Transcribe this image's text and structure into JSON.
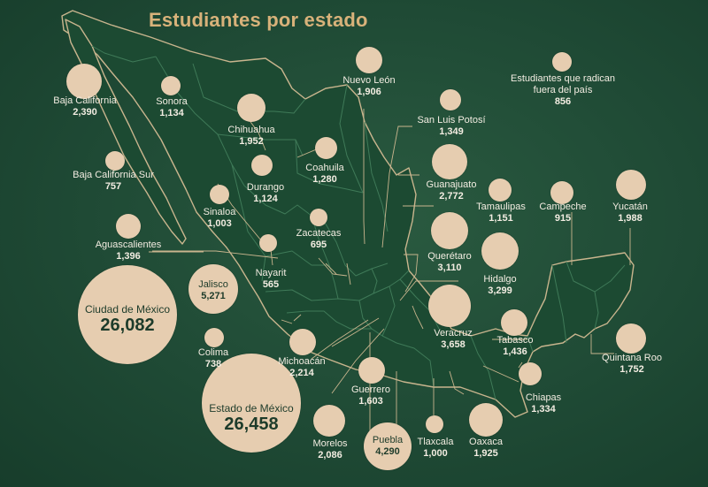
{
  "title": "Estudiantes por estado",
  "states": [
    {
      "key": "bc",
      "name": "Baja California",
      "value": "2,390"
    },
    {
      "key": "son",
      "name": "Sonora",
      "value": "1,134"
    },
    {
      "key": "chih",
      "name": "Chihuahua",
      "value": "1,952"
    },
    {
      "key": "nl",
      "name": "Nuevo León",
      "value": "1,906"
    },
    {
      "key": "ext",
      "name": "Estudiantes que radican fuera del país",
      "value": "856"
    },
    {
      "key": "slp",
      "name": "San Luis Potosí",
      "value": "1,349"
    },
    {
      "key": "bcs",
      "name": "Baja California Sur",
      "value": "757"
    },
    {
      "key": "coah",
      "name": "Coahuila",
      "value": "1,280"
    },
    {
      "key": "gto",
      "name": "Guanajuato",
      "value": "2,772"
    },
    {
      "key": "sin",
      "name": "Sinaloa",
      "value": "1,003"
    },
    {
      "key": "dgo",
      "name": "Durango",
      "value": "1,124"
    },
    {
      "key": "tamps",
      "name": "Tamaulipas",
      "value": "1,151"
    },
    {
      "key": "camp",
      "name": "Campeche",
      "value": "915"
    },
    {
      "key": "yuc",
      "name": "Yucatán",
      "value": "1,988"
    },
    {
      "key": "ags",
      "name": "Aguascalientes",
      "value": "1,396"
    },
    {
      "key": "zac",
      "name": "Zacatecas",
      "value": "695"
    },
    {
      "key": "qro",
      "name": "Querétaro",
      "value": "3,110"
    },
    {
      "key": "nay",
      "name": "Nayarit",
      "value": "565"
    },
    {
      "key": "hgo",
      "name": "Hidalgo",
      "value": "3,299"
    },
    {
      "key": "jal",
      "name": "Jalisco",
      "value": "5,271"
    },
    {
      "key": "cdmx",
      "name": "Ciudad de México",
      "value": "26,082"
    },
    {
      "key": "ver",
      "name": "Veracruz",
      "value": "3,658"
    },
    {
      "key": "tab",
      "name": "Tabasco",
      "value": "1,436"
    },
    {
      "key": "col",
      "name": "Colima",
      "value": "738"
    },
    {
      "key": "mich",
      "name": "Michoacán",
      "value": "2,214"
    },
    {
      "key": "qroo",
      "name": "Quintana Roo",
      "value": "1,752"
    },
    {
      "key": "gro",
      "name": "Guerrero",
      "value": "1,603"
    },
    {
      "key": "chis",
      "name": "Chiapas",
      "value": "1,334"
    },
    {
      "key": "edomex",
      "name": "Estado de México",
      "value": "26,458"
    },
    {
      "key": "mor",
      "name": "Morelos",
      "value": "2,086"
    },
    {
      "key": "pue",
      "name": "Puebla",
      "value": "4,290"
    },
    {
      "key": "tlax",
      "name": "Tlaxcala",
      "value": "1,000"
    },
    {
      "key": "oax",
      "name": "Oaxaca",
      "value": "1,925"
    }
  ],
  "colors": {
    "background": "#1f4a35",
    "land": "#1c4a32",
    "border": "#c9b58e",
    "bubble": "#e6cdb0",
    "title": "#d8b27a",
    "text": "#f3ede2"
  }
}
